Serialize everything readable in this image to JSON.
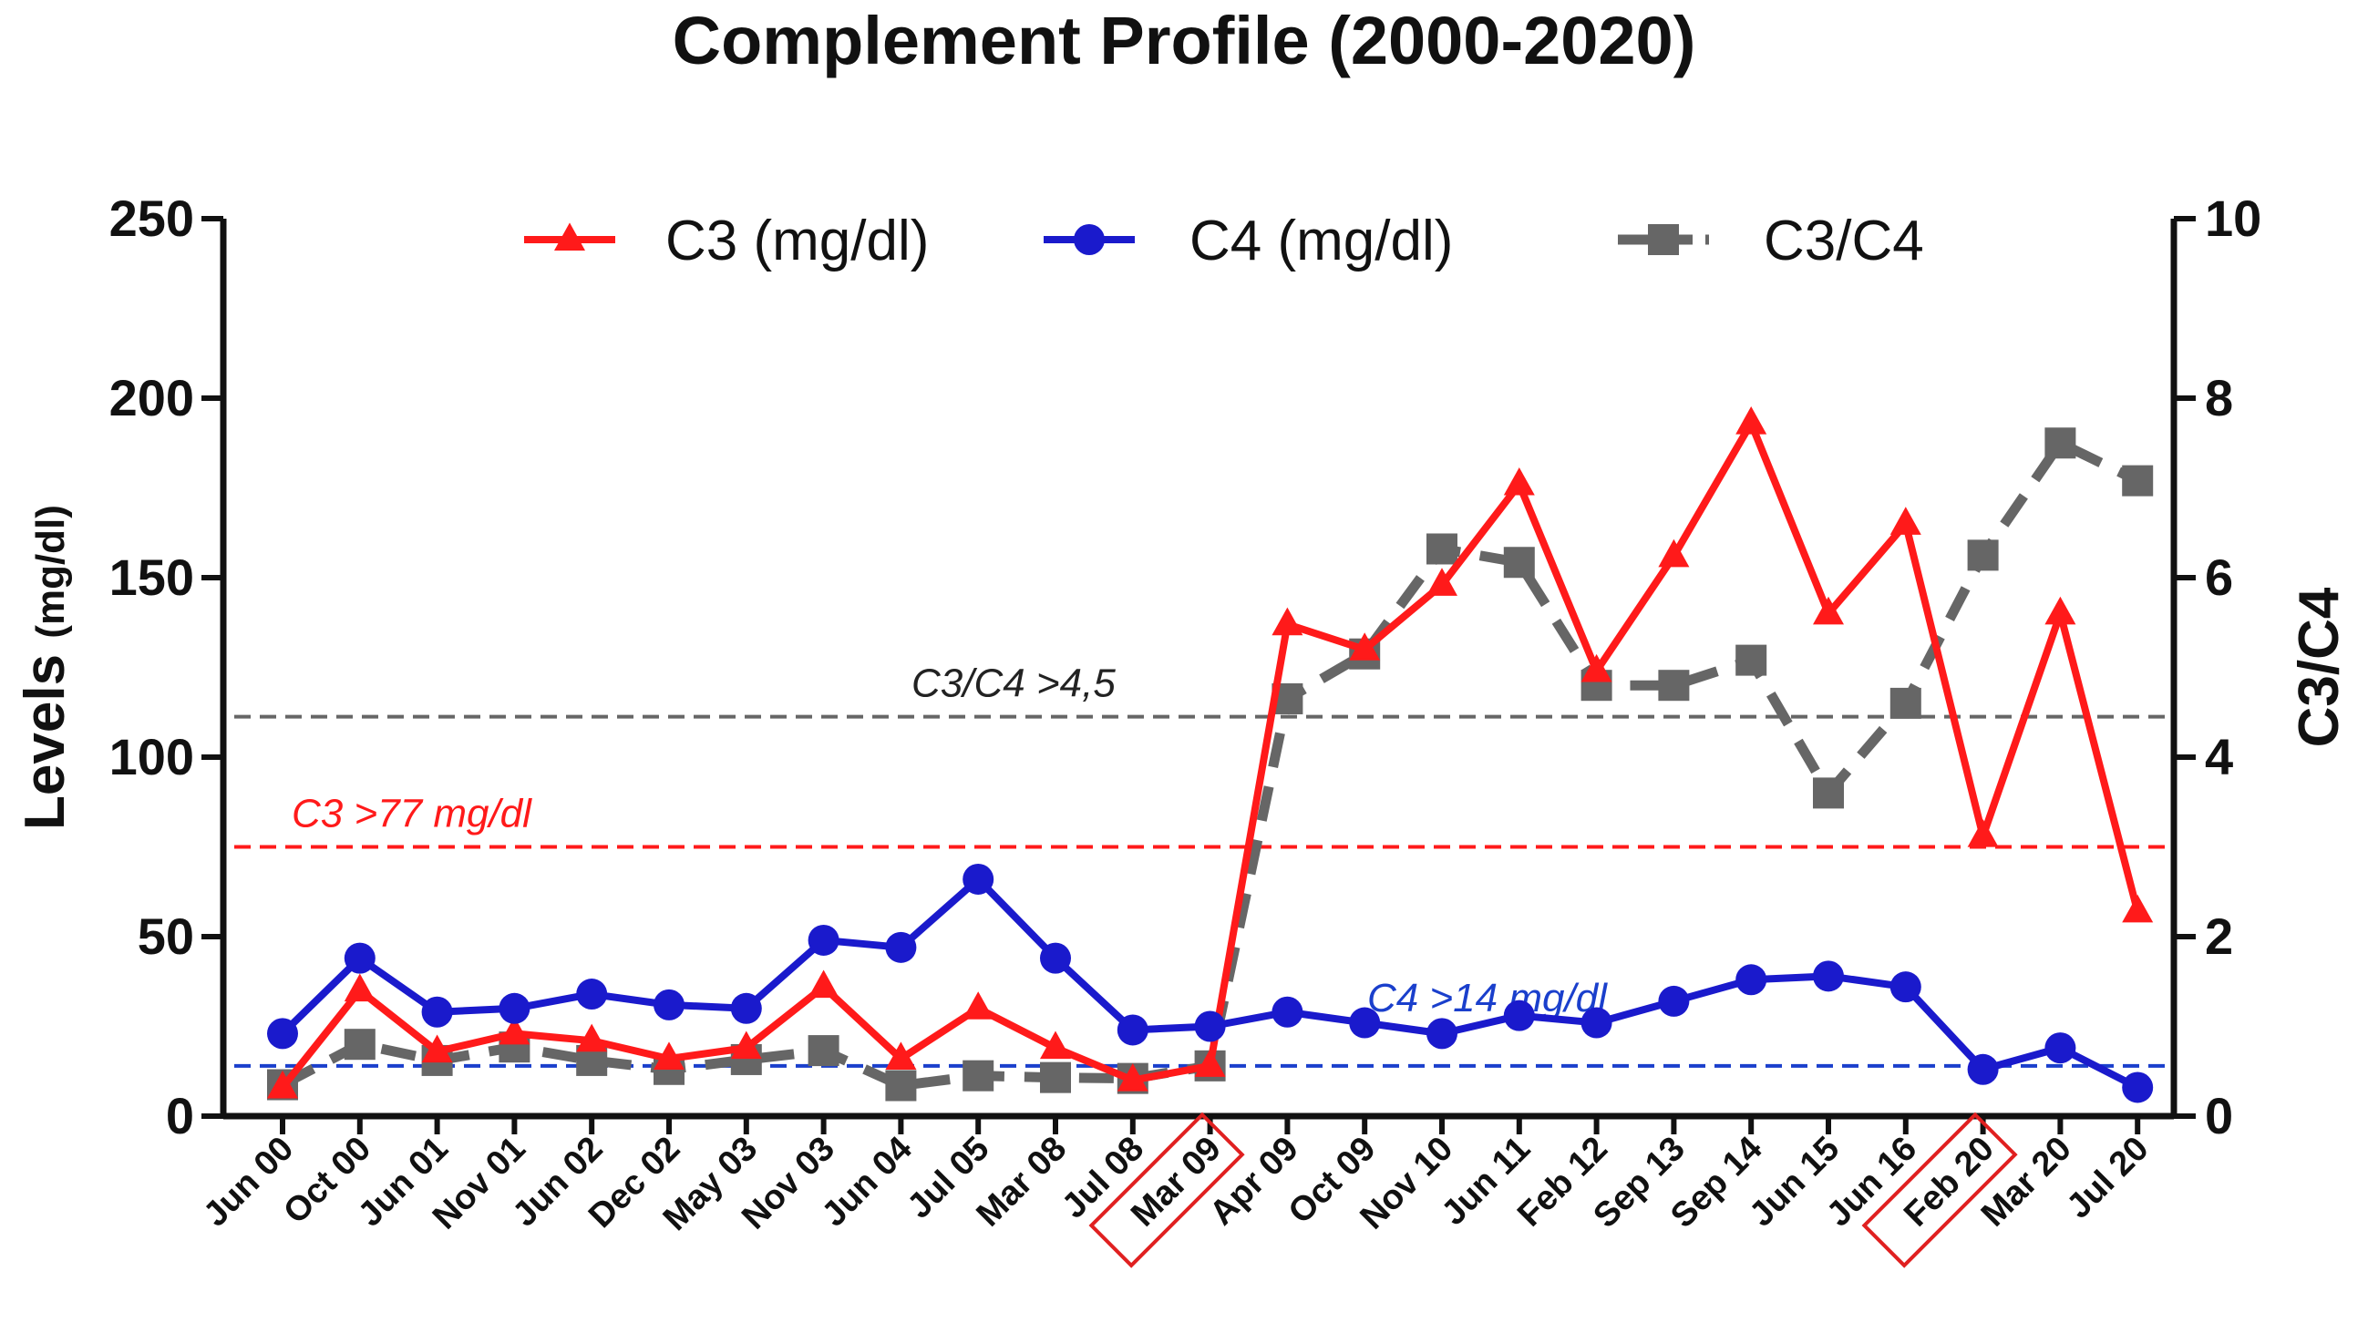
{
  "chart_data": {
    "type": "line",
    "title": "Complement Profile (2000-2020)",
    "ylabel_main": "Levels",
    "ylabel_unit": "(mg/dl)",
    "y2label": "C3/C4",
    "ylim": [
      0,
      250
    ],
    "y2lim": [
      0,
      10
    ],
    "yticks": [
      "0",
      "50",
      "100",
      "150",
      "200",
      "250"
    ],
    "y2ticks": [
      "0",
      "2",
      "4",
      "6",
      "8",
      "10"
    ],
    "categories": [
      "Jun 00",
      "Oct 00",
      "Jun 01",
      "Nov 01",
      "Jun 02",
      "Dec 02",
      "May 03",
      "Nov 03",
      "Jun 04",
      "Jul 05",
      "Mar 08",
      "Jul 08",
      "Mar 09",
      "Apr 09",
      "Oct 09",
      "Nov 10",
      "Jun 11",
      "Feb 12",
      "Sep 13",
      "Sep 14",
      "Jun 15",
      "Jun 16",
      "Feb 20",
      "Mar 20",
      "Jul 20"
    ],
    "highlighted": [
      "Mar 09",
      "Feb 20"
    ],
    "series": [
      {
        "name": "C3 (mg/dl)",
        "color": "#ff1a1a",
        "marker": "triangle",
        "axis": "left",
        "dashed": false,
        "values": [
          8,
          35,
          18,
          23,
          21,
          16,
          19,
          36,
          16,
          30,
          19,
          10,
          14,
          137,
          130,
          148,
          176,
          124,
          156,
          193,
          140,
          165,
          78,
          140,
          57
        ]
      },
      {
        "name": "C4 (mg/dl)",
        "color": "#1a1acc",
        "marker": "circle",
        "axis": "left",
        "dashed": false,
        "values": [
          23,
          44,
          29,
          30,
          34,
          31,
          30,
          49,
          47,
          66,
          44,
          24,
          25,
          29,
          26,
          23,
          28,
          26,
          32,
          38,
          39,
          36,
          13,
          19,
          8
        ]
      },
      {
        "name": "C3/C4",
        "color": "#666666",
        "marker": "square",
        "axis": "right",
        "dashed": true,
        "values": [
          0.35,
          0.8,
          0.62,
          0.77,
          0.62,
          0.52,
          0.63,
          0.73,
          0.34,
          0.45,
          0.43,
          0.42,
          0.56,
          4.65,
          5.15,
          6.32,
          6.17,
          4.8,
          4.8,
          5.08,
          3.6,
          4.6,
          6.25,
          7.5,
          7.08
        ]
      }
    ],
    "thresholds": [
      {
        "label": "C3/C4 >4,5",
        "value": 4.45,
        "axis": "right",
        "color": "#666666",
        "text_color": "#222222"
      },
      {
        "label": "C3 >77 mg/dl",
        "value": 75,
        "axis": "left",
        "color": "#ff1a1a",
        "text_color": "#ff1a1a"
      },
      {
        "label": "C4 >14 mg/dl",
        "value": 14,
        "axis": "left",
        "color": "#1a3fcc",
        "text_color": "#1a3fcc"
      }
    ],
    "legend_position": "top"
  }
}
